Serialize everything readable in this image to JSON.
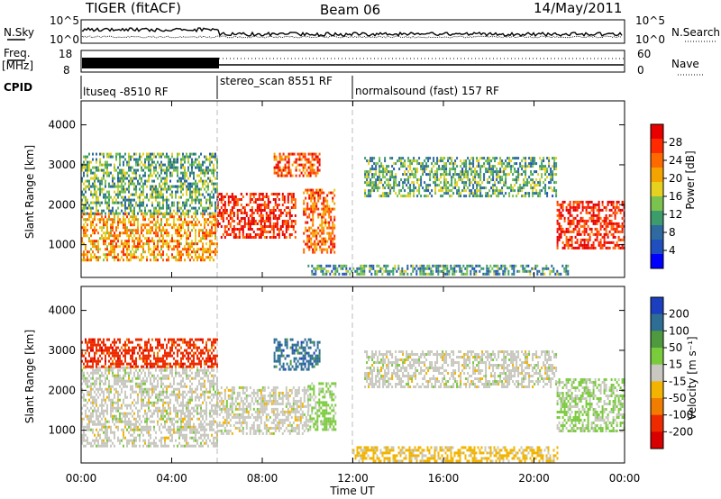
{
  "header": {
    "radar": "TIGER (fitACF)",
    "beam": "Beam 06",
    "date": "14/May/2011"
  },
  "noise_panel": {
    "left_label": "N.Sky",
    "right_label": "N.Search",
    "y_ticks": [
      "10^5",
      "10^0"
    ]
  },
  "freq_panel": {
    "left_label_top": "Freq.",
    "left_label_unit": "[MHz]",
    "left_ticks": [
      "18",
      "8"
    ],
    "right_label": "Nave",
    "right_ticks": [
      "60",
      "0"
    ]
  },
  "cpid": {
    "label": "CPID",
    "modes": [
      {
        "name": "ltuseq -8510 RF",
        "start_hour": 0
      },
      {
        "name": "stereo_scan 8551 RF",
        "start_hour": 6
      },
      {
        "name": "normalsound (fast) 157 RF",
        "start_hour": 12
      }
    ]
  },
  "x_axis": {
    "title": "Time UT",
    "ticks": [
      "00:00",
      "04:00",
      "08:00",
      "12:00",
      "16:00",
      "20:00",
      "00:00"
    ],
    "range_hours": [
      0,
      24
    ]
  },
  "power_panel": {
    "ylabel": "Slant Range [km]",
    "y_ticks": [
      "1000",
      "2000",
      "3000",
      "4000"
    ],
    "colorbar_label": "Power [dB]",
    "colorbar_ticks": [
      "28",
      "24",
      "20",
      "16",
      "12",
      "8",
      "4"
    ]
  },
  "velocity_panel": {
    "ylabel": "Slant Range [km]",
    "y_ticks": [
      "1000",
      "2000",
      "3000",
      "4000"
    ],
    "colorbar_label": "Velocity [m s⁻¹]",
    "colorbar_ticks": [
      "200",
      "100",
      "50",
      "15",
      "-15",
      "-50",
      "-100",
      "-200"
    ]
  },
  "colors": {
    "power_scale": [
      "#0000ff",
      "#1f4fbf",
      "#2f6aa0",
      "#3c9c6c",
      "#7cc24e",
      "#e6d020",
      "#f4a400",
      "#ff6a00",
      "#ff2a00",
      "#e80000"
    ],
    "velocity_scale": [
      "#1c3fc0",
      "#2e6e94",
      "#4f9a3e",
      "#7acb3c",
      "#c8c8c0",
      "#f2b400",
      "#f07d00",
      "#ee2a00",
      "#d80000"
    ]
  },
  "chart_data": [
    {
      "type": "heatmap",
      "variable": "Power",
      "units": "dB",
      "x_range_hours": [
        0,
        24
      ],
      "y_range_km": [
        180,
        4600
      ],
      "color_range": [
        0,
        32
      ],
      "regions": [
        {
          "t": [
            0.0,
            6.0
          ],
          "r": [
            600,
            1800
          ],
          "power_db": 22
        },
        {
          "t": [
            0.0,
            6.0
          ],
          "r": [
            1800,
            3300
          ],
          "power_db": 12
        },
        {
          "t": [
            6.0,
            9.5
          ],
          "r": [
            1200,
            2300
          ],
          "power_db": 30
        },
        {
          "t": [
            8.5,
            10.5
          ],
          "r": [
            2700,
            3300
          ],
          "power_db": 27
        },
        {
          "t": [
            9.8,
            11.2
          ],
          "r": [
            800,
            2400
          ],
          "power_db": 26
        },
        {
          "t": [
            12.5,
            21.0
          ],
          "r": [
            2200,
            3200
          ],
          "power_db": 12
        },
        {
          "t": [
            10.0,
            21.5
          ],
          "r": [
            250,
            500
          ],
          "power_db": 10
        },
        {
          "t": [
            21.0,
            24.0
          ],
          "r": [
            900,
            2100
          ],
          "power_db": 30
        }
      ]
    },
    {
      "type": "heatmap",
      "variable": "Velocity",
      "units": "m/s",
      "x_range_hours": [
        0,
        24
      ],
      "y_range_km": [
        180,
        4600
      ],
      "color_range": [
        -200,
        200
      ],
      "regions": [
        {
          "t": [
            0.0,
            6.0
          ],
          "r": [
            600,
            2600
          ],
          "velocity": 0
        },
        {
          "t": [
            0.0,
            6.0
          ],
          "r": [
            2600,
            3300
          ],
          "velocity": -150
        },
        {
          "t": [
            6.0,
            10.0
          ],
          "r": [
            900,
            2100
          ],
          "velocity": 0
        },
        {
          "t": [
            8.5,
            10.5
          ],
          "r": [
            2500,
            3300
          ],
          "velocity": 150
        },
        {
          "t": [
            10.0,
            11.2
          ],
          "r": [
            1000,
            2200
          ],
          "velocity": 40
        },
        {
          "t": [
            12.5,
            21.0
          ],
          "r": [
            2100,
            3000
          ],
          "velocity": 0
        },
        {
          "t": [
            12.0,
            21.0
          ],
          "r": [
            250,
            600
          ],
          "velocity": -40
        },
        {
          "t": [
            21.0,
            24.0
          ],
          "r": [
            1000,
            2300
          ],
          "velocity": 30
        }
      ]
    }
  ]
}
